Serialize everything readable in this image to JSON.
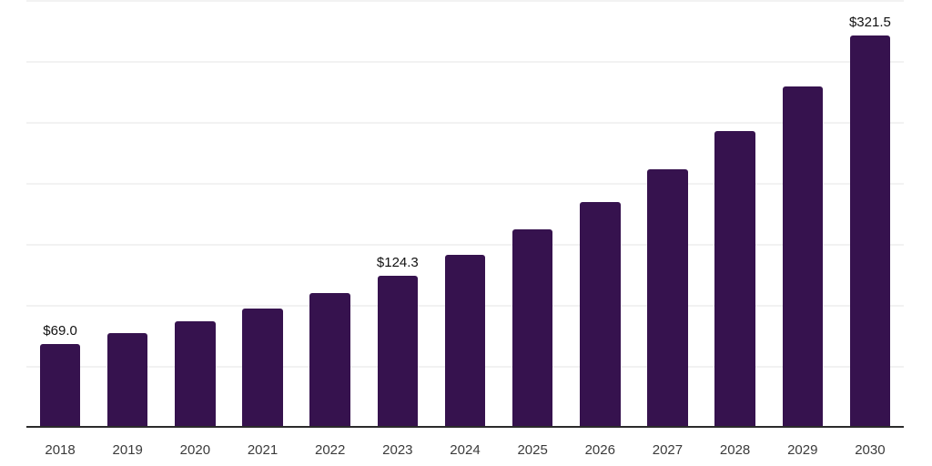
{
  "chart_data": {
    "type": "bar",
    "title": "",
    "xlabel": "",
    "ylabel": "",
    "categories": [
      "2018",
      "2019",
      "2020",
      "2021",
      "2022",
      "2023",
      "2024",
      "2025",
      "2026",
      "2027",
      "2028",
      "2029",
      "2030"
    ],
    "values": [
      69.0,
      77.6,
      87.2,
      98.1,
      110.3,
      124.3,
      142.0,
      163.0,
      185.0,
      212.0,
      243.0,
      280.0,
      321.5
    ],
    "value_labels_on_chart": [
      {
        "index": 0,
        "label": "$69.0"
      },
      {
        "index": 5,
        "label": "$124.3"
      },
      {
        "index": 12,
        "label": "$321.5"
      }
    ],
    "ylim": [
      0,
      350
    ],
    "gridline_step": 50,
    "grid": true,
    "legend": false,
    "y_axis_labels_visible": false,
    "colors": {
      "bar": "#36124E",
      "gridline": "#F2F2F2",
      "axis_line": "#2B2B2B",
      "tick_label": "#3B3B3B",
      "value_label": "#111111",
      "background": "#FFFFFF"
    }
  }
}
